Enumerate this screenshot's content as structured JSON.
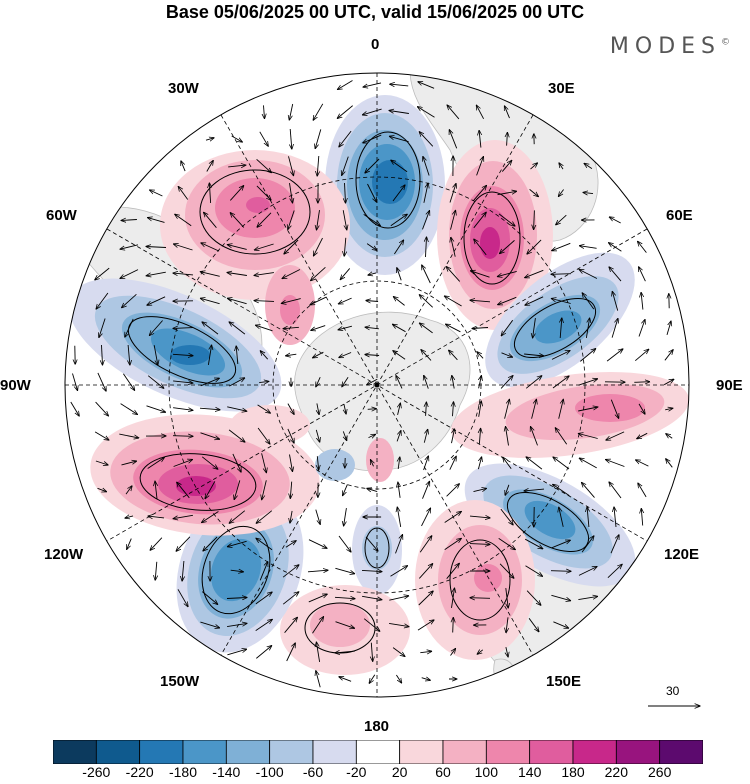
{
  "title": "Base 05/06/2025 00 UTC, valid 15/06/2025 00 UTC",
  "logo": "MODES",
  "logo_mark": "©",
  "longitude_labels": {
    "lon_0": "0",
    "lon_30e": "30E",
    "lon_60e": "60E",
    "lon_90e": "90E",
    "lon_120e": "120E",
    "lon_150e": "150E",
    "lon_180": "180",
    "lon_150w": "150W",
    "lon_120w": "120W",
    "lon_90w": "90W",
    "lon_60w": "60W",
    "lon_30w": "30W"
  },
  "reference_vector": {
    "value": "30"
  },
  "colorbar": {
    "tick_labels": [
      "-260",
      "-220",
      "-180",
      "-140",
      "-100",
      "-60",
      "-20",
      "20",
      "60",
      "100",
      "140",
      "180",
      "220",
      "260"
    ],
    "colors": [
      "#0c3a5e",
      "#0f5a8e",
      "#2478b4",
      "#4b96c8",
      "#7fb0d6",
      "#aec7e3",
      "#d7dbef",
      "#ffffff",
      "#f9d7dc",
      "#f4b1c3",
      "#ee86ac",
      "#e05d9e",
      "#c8288a",
      "#98147e",
      "#5c0a6e"
    ]
  },
  "anomaly_centres": [
    {
      "sign": "negative",
      "level": -220,
      "lon": "5E",
      "note": "centre near 0 longitude"
    },
    {
      "sign": "positive",
      "level": 220,
      "lon": "35E"
    },
    {
      "sign": "negative",
      "level": -180,
      "lon": "70E"
    },
    {
      "sign": "positive",
      "level": 100,
      "lon": "95E"
    },
    {
      "sign": "negative",
      "level": -180,
      "lon": "125E"
    },
    {
      "sign": "positive",
      "level": 100,
      "lon": "150E"
    },
    {
      "sign": "negative",
      "level": -60,
      "lon": "175E"
    },
    {
      "sign": "negative",
      "level": -180,
      "lon": "145W"
    },
    {
      "sign": "positive",
      "level": 220,
      "lon": "110W"
    },
    {
      "sign": "negative",
      "level": -180,
      "lon": "80W"
    },
    {
      "sign": "positive",
      "level": 140,
      "lon": "45W"
    }
  ]
}
